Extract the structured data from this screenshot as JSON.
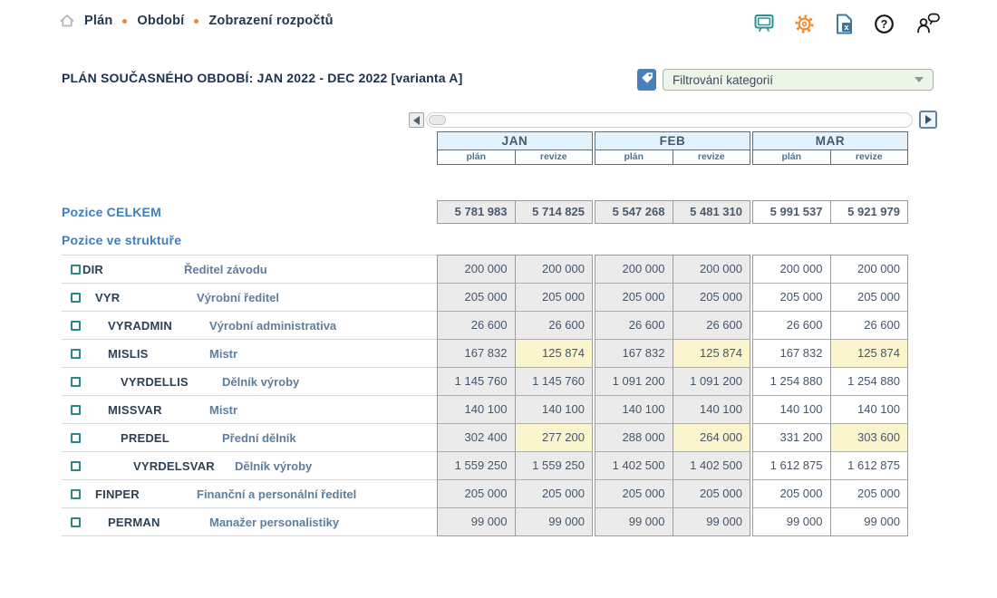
{
  "breadcrumb": {
    "items": [
      "Plán",
      "Období",
      "Zobrazení rozpočtů"
    ]
  },
  "header_icons": [
    "monitor-icon",
    "gear-icon",
    "excel-export-icon",
    "help-icon",
    "user-feedback-icon"
  ],
  "title": "PLÁN SOUČASNÉHO OBDOBÍ: JAN 2022 - DEC 2022 [varianta A]",
  "filter": {
    "label": "Filtrování kategorií"
  },
  "table": {
    "months": [
      {
        "label": "JAN",
        "columns": [
          "plán",
          "revize"
        ]
      },
      {
        "label": "FEB",
        "columns": [
          "plán",
          "revize"
        ]
      },
      {
        "label": "MAR",
        "columns": [
          "plán",
          "revize"
        ]
      }
    ],
    "total": {
      "label": "Pozice CELKEM",
      "values": [
        "5 781 983",
        "5 714 825",
        "5 547 268",
        "5 481 310",
        "5 991 537",
        "5 921 979"
      ]
    },
    "structure_label": "Pozice ve struktuře",
    "rows": [
      {
        "code": "DIR",
        "desc": "Ředitel závodu",
        "level": 0,
        "values": [
          "200 000",
          "200 000",
          "200 000",
          "200 000",
          "200 000",
          "200 000"
        ],
        "highlight": []
      },
      {
        "code": "VYR",
        "desc": "Výrobní ředitel",
        "level": 1,
        "values": [
          "205 000",
          "205 000",
          "205 000",
          "205 000",
          "205 000",
          "205 000"
        ],
        "highlight": []
      },
      {
        "code": "VYRADMIN",
        "desc": "Výrobní administrativa",
        "level": 2,
        "values": [
          "26 600",
          "26 600",
          "26 600",
          "26 600",
          "26 600",
          "26 600"
        ],
        "highlight": []
      },
      {
        "code": "MISLIS",
        "desc": "Mistr",
        "level": 2,
        "values": [
          "167 832",
          "125 874",
          "167 832",
          "125 874",
          "167 832",
          "125 874"
        ],
        "highlight": [
          1,
          3,
          5
        ]
      },
      {
        "code": "VYRDELLIS",
        "desc": "Dělník výroby",
        "level": 3,
        "values": [
          "1 145 760",
          "1 145 760",
          "1 091 200",
          "1 091 200",
          "1 254 880",
          "1 254 880"
        ],
        "highlight": []
      },
      {
        "code": "MISSVAR",
        "desc": "Mistr",
        "level": 2,
        "values": [
          "140 100",
          "140 100",
          "140 100",
          "140 100",
          "140 100",
          "140 100"
        ],
        "highlight": []
      },
      {
        "code": "PREDEL",
        "desc": "Přední dělník",
        "level": 3,
        "values": [
          "302 400",
          "277 200",
          "288 000",
          "264 000",
          "331 200",
          "303 600"
        ],
        "highlight": [
          1,
          3,
          5
        ]
      },
      {
        "code": "VYRDELSVAR",
        "desc": "Dělník výroby",
        "level": 4,
        "values": [
          "1 559 250",
          "1 559 250",
          "1 402 500",
          "1 402 500",
          "1 612 875",
          "1 612 875"
        ],
        "highlight": []
      },
      {
        "code": "FINPER",
        "desc": "Finanční a personální ředitel",
        "level": 1,
        "values": [
          "205 000",
          "205 000",
          "205 000",
          "205 000",
          "205 000",
          "205 000"
        ],
        "highlight": []
      },
      {
        "code": "PERMAN",
        "desc": "Manažer personalistiky",
        "level": 2,
        "values": [
          "99 000",
          "99 000",
          "99 000",
          "99 000",
          "99 000",
          "99 000"
        ],
        "highlight": []
      }
    ]
  },
  "colors": {
    "accent_orange": "#e98b2d",
    "icon_teal": "#2c9191",
    "icon_steel_blue": "#3a79a3",
    "button_blue": "#4a80b8",
    "month_header_bg": "#e3f2fa",
    "past_cell_bg": "#ebebeb",
    "revision_highlight_bg": "#faf5cc",
    "section_label_blue": "#3e7ec0",
    "checkbox_teal": "#2f8585"
  }
}
